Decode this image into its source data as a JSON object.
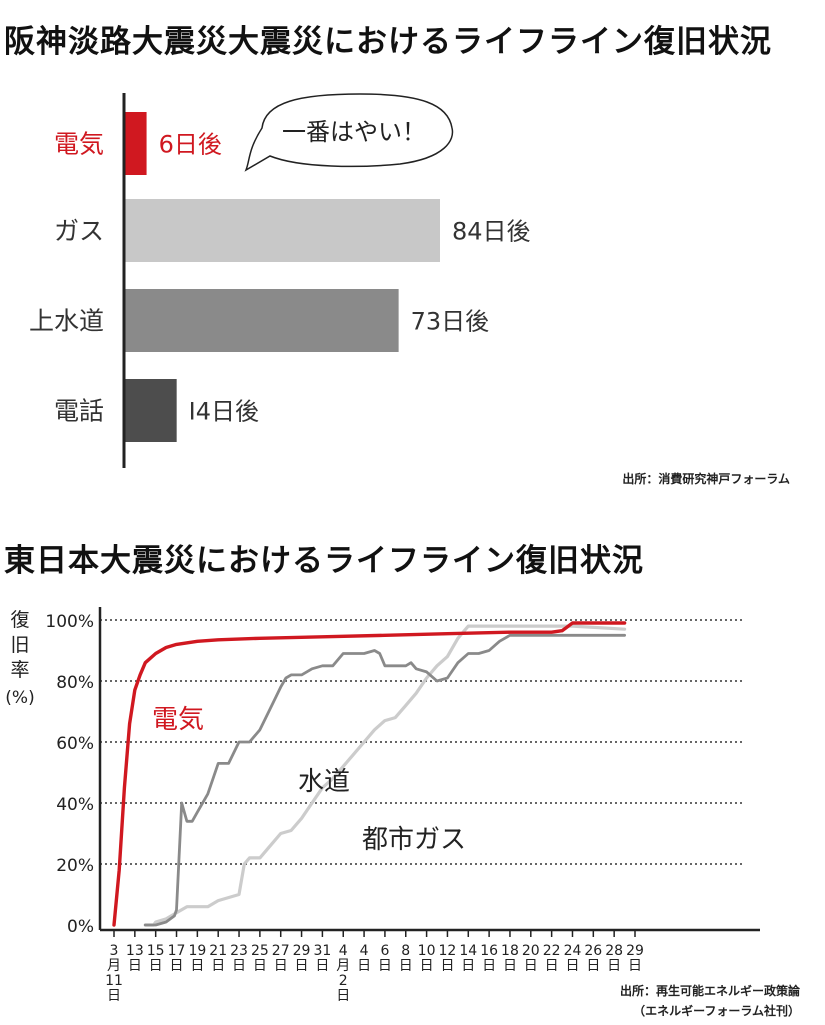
{
  "chart_data": [
    {
      "type": "bar",
      "orientation": "horizontal",
      "title": "阪神淡路大震災大震災におけるライフライン復旧状況",
      "categories": [
        "電気",
        "ガス",
        "上水道",
        "電話"
      ],
      "values": [
        6,
        84,
        73,
        14
      ],
      "value_labels": [
        "6日後",
        "84日後",
        "73日後",
        "I4日後"
      ],
      "colors": [
        "#d01820",
        "#c8c8c8",
        "#8a8a8a",
        "#4d4d4d"
      ],
      "annotation": "一番はやい！",
      "source": "出所：消費研究神戸フォーラム"
    },
    {
      "type": "line",
      "title": "東日本大震災におけるライフライン復旧状況",
      "ylabel_chars": [
        "復",
        "旧",
        "率",
        "(%)"
      ],
      "ylim": [
        0,
        100
      ],
      "y_ticks": [
        "0%",
        "20%",
        "40%",
        "60%",
        "80%",
        "100%"
      ],
      "x_ticks": [
        {
          "x": 0,
          "label": [
            "3",
            "月",
            "11",
            "日"
          ]
        },
        {
          "x": 2,
          "label": [
            "13",
            "日"
          ]
        },
        {
          "x": 4,
          "label": [
            "15",
            "日"
          ]
        },
        {
          "x": 6,
          "label": [
            "17",
            "日"
          ]
        },
        {
          "x": 8,
          "label": [
            "19",
            "日"
          ]
        },
        {
          "x": 10,
          "label": [
            "21",
            "日"
          ]
        },
        {
          "x": 12,
          "label": [
            "23",
            "日"
          ]
        },
        {
          "x": 14,
          "label": [
            "25",
            "日"
          ]
        },
        {
          "x": 16,
          "label": [
            "27",
            "日"
          ]
        },
        {
          "x": 18,
          "label": [
            "29",
            "日"
          ]
        },
        {
          "x": 20,
          "label": [
            "31",
            "日"
          ]
        },
        {
          "x": 22,
          "label": [
            "4",
            "月",
            "2",
            "日"
          ]
        },
        {
          "x": 24,
          "label": [
            "4",
            "日"
          ]
        },
        {
          "x": 26,
          "label": [
            "6",
            "日"
          ]
        },
        {
          "x": 28,
          "label": [
            "8",
            "日"
          ]
        },
        {
          "x": 30,
          "label": [
            "10",
            "日"
          ]
        },
        {
          "x": 32,
          "label": [
            "12",
            "日"
          ]
        },
        {
          "x": 34,
          "label": [
            "14",
            "日"
          ]
        },
        {
          "x": 36,
          "label": [
            "16",
            "日"
          ]
        },
        {
          "x": 38,
          "label": [
            "18",
            "日"
          ]
        },
        {
          "x": 40,
          "label": [
            "20",
            "日"
          ]
        },
        {
          "x": 42,
          "label": [
            "22",
            "日"
          ]
        },
        {
          "x": 44,
          "label": [
            "24",
            "日"
          ]
        },
        {
          "x": 46,
          "label": [
            "26",
            "日"
          ]
        },
        {
          "x": 48,
          "label": [
            "28",
            "日"
          ]
        },
        {
          "x": 50,
          "label": [
            "29",
            "日"
          ]
        }
      ],
      "series": [
        {
          "name": "電気",
          "color": "#d01820",
          "points": [
            [
              0,
              0
            ],
            [
              0.5,
              18
            ],
            [
              1,
              45
            ],
            [
              1.5,
              66
            ],
            [
              2,
              77
            ],
            [
              2.5,
              82
            ],
            [
              3,
              86
            ],
            [
              4,
              89
            ],
            [
              5,
              91
            ],
            [
              6,
              92
            ],
            [
              8,
              93
            ],
            [
              10,
              93.5
            ],
            [
              14,
              94
            ],
            [
              20,
              94.5
            ],
            [
              26,
              95
            ],
            [
              32,
              95.5
            ],
            [
              38,
              96
            ],
            [
              42,
              96
            ],
            [
              43,
              96.5
            ],
            [
              44,
              99
            ],
            [
              46,
              99
            ],
            [
              49,
              99
            ]
          ]
        },
        {
          "name": "水道",
          "color": "#8a8a8a",
          "points": [
            [
              3,
              0
            ],
            [
              4,
              0
            ],
            [
              5,
              1
            ],
            [
              5.8,
              3
            ],
            [
              6,
              5
            ],
            [
              6.5,
              40
            ],
            [
              7,
              34
            ],
            [
              7.5,
              34
            ],
            [
              8,
              37
            ],
            [
              9,
              43
            ],
            [
              10,
              53
            ],
            [
              11,
              53
            ],
            [
              12,
              60
            ],
            [
              13,
              60
            ],
            [
              14,
              64
            ],
            [
              15,
              71
            ],
            [
              16,
              78
            ],
            [
              16.5,
              81
            ],
            [
              17,
              82
            ],
            [
              18,
              82
            ],
            [
              19,
              84
            ],
            [
              20,
              85
            ],
            [
              21,
              85
            ],
            [
              22,
              89
            ],
            [
              23,
              89
            ],
            [
              24,
              89
            ],
            [
              25,
              90
            ],
            [
              25.5,
              89
            ],
            [
              26,
              85
            ],
            [
              27,
              85
            ],
            [
              28,
              85
            ],
            [
              28.5,
              86
            ],
            [
              29,
              84
            ],
            [
              30,
              83
            ],
            [
              31,
              80
            ],
            [
              32,
              81
            ],
            [
              33,
              86
            ],
            [
              34,
              89
            ],
            [
              35,
              89
            ],
            [
              36,
              90
            ],
            [
              37,
              93
            ],
            [
              38,
              95
            ],
            [
              40,
              95
            ],
            [
              42,
              95
            ],
            [
              45,
              95
            ],
            [
              49,
              95
            ]
          ]
        },
        {
          "name": "都市ガス",
          "color": "#cccccc",
          "points": [
            [
              3,
              0
            ],
            [
              3.8,
              0
            ],
            [
              4,
              1
            ],
            [
              5,
              2
            ],
            [
              6,
              4
            ],
            [
              7,
              6
            ],
            [
              9,
              6
            ],
            [
              10,
              8
            ],
            [
              12,
              10
            ],
            [
              12.5,
              20
            ],
            [
              13,
              22
            ],
            [
              14,
              22
            ],
            [
              15,
              26
            ],
            [
              16,
              30
            ],
            [
              17,
              31
            ],
            [
              18,
              35
            ],
            [
              19,
              40
            ],
            [
              20,
              45
            ],
            [
              21,
              48
            ],
            [
              22,
              52
            ],
            [
              23,
              56
            ],
            [
              24,
              60
            ],
            [
              25,
              64
            ],
            [
              26,
              67
            ],
            [
              27,
              68
            ],
            [
              28,
              72
            ],
            [
              29,
              76
            ],
            [
              30,
              81
            ],
            [
              31,
              85
            ],
            [
              32,
              88
            ],
            [
              33,
              94
            ],
            [
              34,
              98
            ],
            [
              35,
              98
            ],
            [
              38,
              98
            ],
            [
              40,
              98
            ],
            [
              44,
              98
            ],
            [
              49,
              97
            ]
          ]
        }
      ],
      "source": [
        "出所：再生可能エネルギー政策論",
        "（エネルギーフォーラム社刊）"
      ]
    }
  ]
}
